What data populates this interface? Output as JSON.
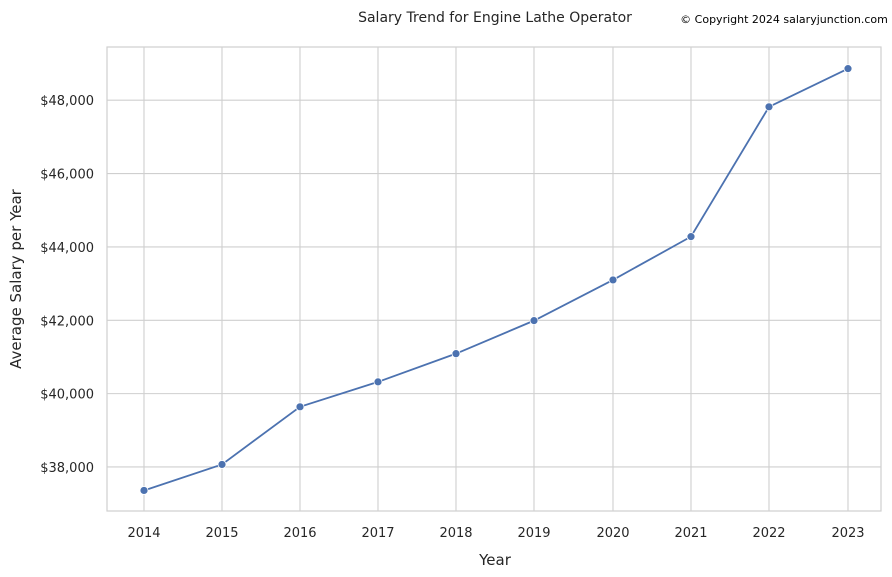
{
  "chart_data": {
    "type": "line",
    "title": "Salary Trend for Engine Lathe Operator",
    "annotation": "© Copyright 2024 salaryjunction.com",
    "xlabel": "Year",
    "ylabel": "Average Salary per Year",
    "x": [
      2014,
      2015,
      2016,
      2017,
      2018,
      2019,
      2020,
      2021,
      2022,
      2023
    ],
    "x_tick_labels": [
      "2014",
      "2015",
      "2016",
      "2017",
      "2018",
      "2019",
      "2020",
      "2021",
      "2022",
      "2023"
    ],
    "series": [
      {
        "values": [
          37360,
          38070,
          39640,
          40320,
          41090,
          41990,
          43100,
          44280,
          47820,
          48860
        ],
        "color": "#4c72b0"
      }
    ],
    "ylim": [
      36800,
      49450
    ],
    "y_ticks": [
      38000,
      40000,
      42000,
      44000,
      46000,
      48000
    ],
    "y_tick_labels": [
      "$38,000",
      "$40,000",
      "$42,000",
      "$44,000",
      "$46,000",
      "$48,000"
    ],
    "grid": true,
    "legend": "none"
  }
}
